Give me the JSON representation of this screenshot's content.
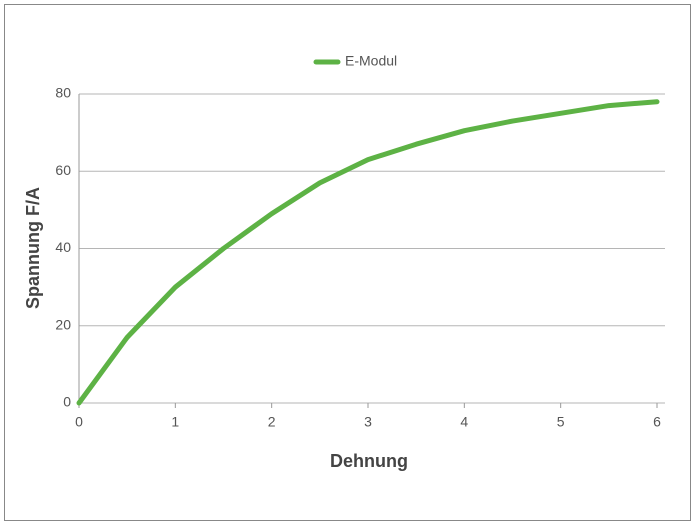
{
  "chart_data": {
    "type": "line",
    "x": [
      0,
      0.5,
      1,
      1.5,
      2,
      2.5,
      3,
      3.5,
      4,
      4.5,
      5,
      5.5,
      6
    ],
    "series": [
      {
        "name": "E-Modul",
        "color": "#5db245",
        "values": [
          0,
          17,
          30,
          40,
          49,
          57,
          63,
          67,
          70.5,
          73,
          75,
          77,
          78
        ]
      }
    ],
    "xlabel": "Dehnung",
    "ylabel": "Spannung F/A",
    "xlim": [
      0,
      6
    ],
    "xticks": [
      0,
      1,
      2,
      3,
      4,
      5,
      6
    ],
    "ylim": [
      0,
      80
    ],
    "yticks": [
      0,
      20,
      40,
      60,
      80
    ],
    "grid": true,
    "legend": "top"
  }
}
